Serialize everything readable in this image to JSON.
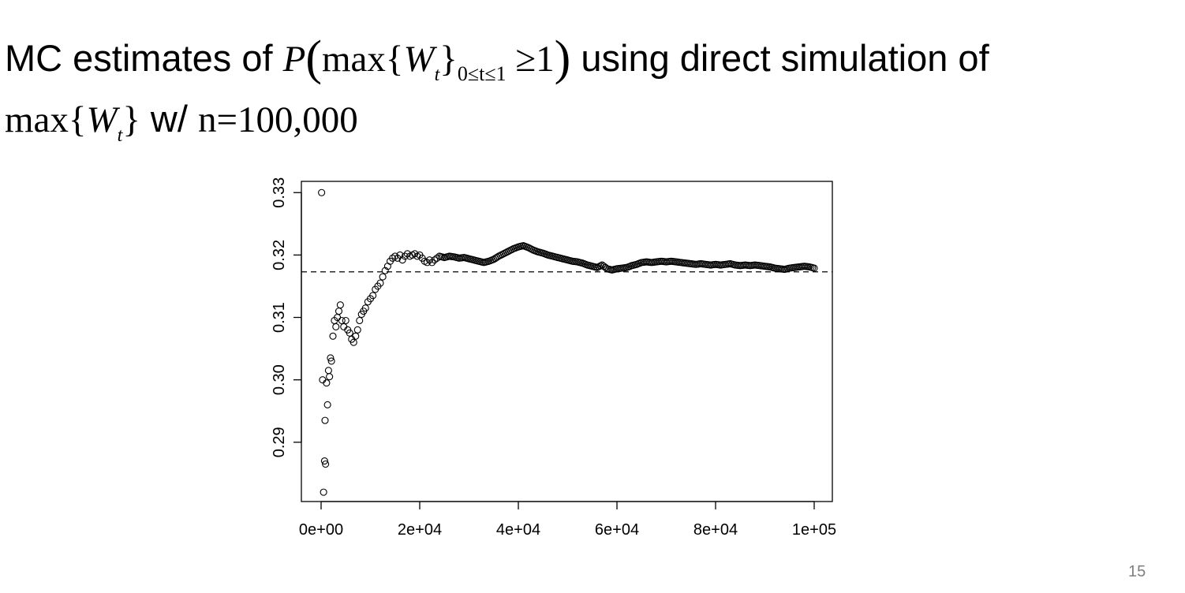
{
  "slide": {
    "title_prefix": "MC estimates of ",
    "title_math_P": "P",
    "title_math_max": "max{",
    "title_math_W": "W",
    "title_math_t": "t",
    "title_math_close": "}",
    "title_math_range": "0≤t≤1",
    "title_math_ge": " ≥1",
    "title_middle": " using direct simulation of",
    "title_line2_max": "max{",
    "title_line2_W": "W",
    "title_line2_t": "t",
    "title_line2_close": "}",
    "title_line2_text": " w/ ",
    "title_line2_n": "n=100,000",
    "page_number": "15"
  },
  "chart_data": {
    "type": "scatter",
    "xlim": [
      0,
      100000
    ],
    "ylim": [
      0.2805,
      0.3318
    ],
    "x_ticks": [
      0,
      20000,
      40000,
      60000,
      80000,
      100000
    ],
    "x_tick_labels": [
      "0e+00",
      "2e+04",
      "4e+04",
      "6e+04",
      "8e+04",
      "1e+05"
    ],
    "y_ticks": [
      0.29,
      0.3,
      0.31,
      0.32,
      0.33
    ],
    "y_tick_labels": [
      "0.29",
      "0.30",
      "0.31",
      "0.32",
      "0.33"
    ],
    "reference_line": {
      "y": 0.3173,
      "style": "dashed"
    },
    "marker": "open-circle",
    "grid": false,
    "series_points": [
      [
        100,
        0.33
      ],
      [
        300,
        0.3
      ],
      [
        500,
        0.282
      ],
      [
        700,
        0.287
      ],
      [
        800,
        0.2935
      ],
      [
        900,
        0.2865
      ],
      [
        1100,
        0.2995
      ],
      [
        1300,
        0.296
      ],
      [
        1500,
        0.3015
      ],
      [
        1700,
        0.3005
      ],
      [
        1900,
        0.3035
      ],
      [
        2100,
        0.303
      ],
      [
        2400,
        0.307
      ],
      [
        2700,
        0.3095
      ],
      [
        3000,
        0.3085
      ],
      [
        3300,
        0.31
      ],
      [
        3600,
        0.311
      ],
      [
        3900,
        0.312
      ],
      [
        4200,
        0.3095
      ],
      [
        4600,
        0.3085
      ],
      [
        5000,
        0.3095
      ],
      [
        5400,
        0.308
      ],
      [
        5800,
        0.3075
      ],
      [
        6200,
        0.3065
      ],
      [
        6600,
        0.306
      ],
      [
        7000,
        0.307
      ],
      [
        7400,
        0.308
      ],
      [
        7800,
        0.3095
      ],
      [
        8200,
        0.3105
      ],
      [
        8600,
        0.311
      ],
      [
        9000,
        0.3115
      ],
      [
        9500,
        0.3125
      ],
      [
        10000,
        0.313
      ],
      [
        10500,
        0.3135
      ],
      [
        11000,
        0.3145
      ],
      [
        11500,
        0.315
      ],
      [
        12000,
        0.3155
      ],
      [
        12500,
        0.3165
      ],
      [
        13000,
        0.3175
      ],
      [
        13500,
        0.3182
      ],
      [
        14000,
        0.319
      ],
      [
        14500,
        0.3195
      ],
      [
        15000,
        0.3198
      ],
      [
        15500,
        0.3195
      ],
      [
        16000,
        0.32
      ],
      [
        16500,
        0.3192
      ],
      [
        17000,
        0.3198
      ],
      [
        17500,
        0.3202
      ],
      [
        18000,
        0.3198
      ],
      [
        18500,
        0.32
      ],
      [
        19000,
        0.3202
      ],
      [
        19500,
        0.3198
      ],
      [
        20000,
        0.32
      ],
      [
        20500,
        0.3195
      ],
      [
        21000,
        0.319
      ],
      [
        21500,
        0.3188
      ],
      [
        22000,
        0.3192
      ],
      [
        22500,
        0.3188
      ],
      [
        23000,
        0.3192
      ],
      [
        23500,
        0.3195
      ],
      [
        24000,
        0.3198
      ],
      [
        25000,
        0.3196
      ],
      [
        26000,
        0.3198
      ],
      [
        27000,
        0.3197
      ],
      [
        28000,
        0.3195
      ],
      [
        29000,
        0.3196
      ],
      [
        30000,
        0.3194
      ],
      [
        31000,
        0.3192
      ],
      [
        32000,
        0.319
      ],
      [
        33000,
        0.3188
      ],
      [
        34000,
        0.319
      ],
      [
        35000,
        0.3193
      ],
      [
        36000,
        0.3198
      ],
      [
        37000,
        0.3202
      ],
      [
        38000,
        0.3206
      ],
      [
        39000,
        0.321
      ],
      [
        40000,
        0.3213
      ],
      [
        41000,
        0.3215
      ],
      [
        42000,
        0.3212
      ],
      [
        43000,
        0.3208
      ],
      [
        44000,
        0.3205
      ],
      [
        45000,
        0.3203
      ],
      [
        46000,
        0.32
      ],
      [
        47000,
        0.3198
      ],
      [
        48000,
        0.3196
      ],
      [
        49000,
        0.3194
      ],
      [
        50000,
        0.3192
      ],
      [
        51000,
        0.319
      ],
      [
        52000,
        0.3189
      ],
      [
        53000,
        0.3187
      ],
      [
        54000,
        0.3184
      ],
      [
        55000,
        0.3182
      ],
      [
        56000,
        0.318
      ],
      [
        57000,
        0.3184
      ],
      [
        58000,
        0.3178
      ],
      [
        59000,
        0.3176
      ],
      [
        60000,
        0.3178
      ],
      [
        61000,
        0.3179
      ],
      [
        62000,
        0.318
      ],
      [
        63000,
        0.3183
      ],
      [
        64000,
        0.3185
      ],
      [
        65000,
        0.3188
      ],
      [
        66000,
        0.3189
      ],
      [
        67000,
        0.3188
      ],
      [
        68000,
        0.3189
      ],
      [
        69000,
        0.319
      ],
      [
        70000,
        0.3189
      ],
      [
        71000,
        0.319
      ],
      [
        72000,
        0.3189
      ],
      [
        73000,
        0.3188
      ],
      [
        74000,
        0.3187
      ],
      [
        75000,
        0.3186
      ],
      [
        76000,
        0.3185
      ],
      [
        77000,
        0.3186
      ],
      [
        78000,
        0.3185
      ],
      [
        79000,
        0.3184
      ],
      [
        80000,
        0.3185
      ],
      [
        81000,
        0.3184
      ],
      [
        82000,
        0.3185
      ],
      [
        83000,
        0.3186
      ],
      [
        84000,
        0.3184
      ],
      [
        85000,
        0.3183
      ],
      [
        86000,
        0.3184
      ],
      [
        87000,
        0.3183
      ],
      [
        88000,
        0.3184
      ],
      [
        89000,
        0.3183
      ],
      [
        90000,
        0.3182
      ],
      [
        91000,
        0.3181
      ],
      [
        92000,
        0.3179
      ],
      [
        93000,
        0.3178
      ],
      [
        94000,
        0.3177
      ],
      [
        95000,
        0.3179
      ],
      [
        96000,
        0.318
      ],
      [
        97000,
        0.3181
      ],
      [
        98000,
        0.3182
      ],
      [
        99000,
        0.3181
      ],
      [
        100000,
        0.3179
      ]
    ]
  }
}
